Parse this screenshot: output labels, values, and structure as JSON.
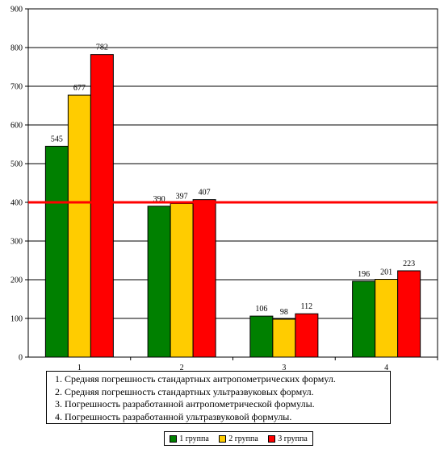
{
  "chart_data": {
    "type": "bar",
    "categories": [
      "1",
      "2",
      "3",
      "4"
    ],
    "series": [
      {
        "name": "1 группа",
        "color": "#008000",
        "values": [
          545,
          390,
          106,
          196
        ]
      },
      {
        "name": "2 группа",
        "color": "#FFCC00",
        "values": [
          677,
          397,
          98,
          201
        ]
      },
      {
        "name": "3 группа",
        "color": "#FF0000",
        "values": [
          782,
          407,
          112,
          223
        ]
      }
    ],
    "ylim": [
      0,
      900
    ],
    "yticks": [
      "0",
      "100",
      "200",
      "300",
      "400",
      "500",
      "600",
      "700",
      "800",
      "900"
    ],
    "reference_line": {
      "value": 400,
      "color": "#FF0000"
    },
    "gridlines": true,
    "legend_position": "bottom"
  },
  "descriptions": [
    "1. Средняя погрешность стандартных антропометрических формул.",
    "2. Средняя погрешность стандартных ультразвуковых формул.",
    "3. Погрешность разработанной антропометрической формулы.",
    "4. Погрешность разработанной ультразвуковой формулы."
  ]
}
